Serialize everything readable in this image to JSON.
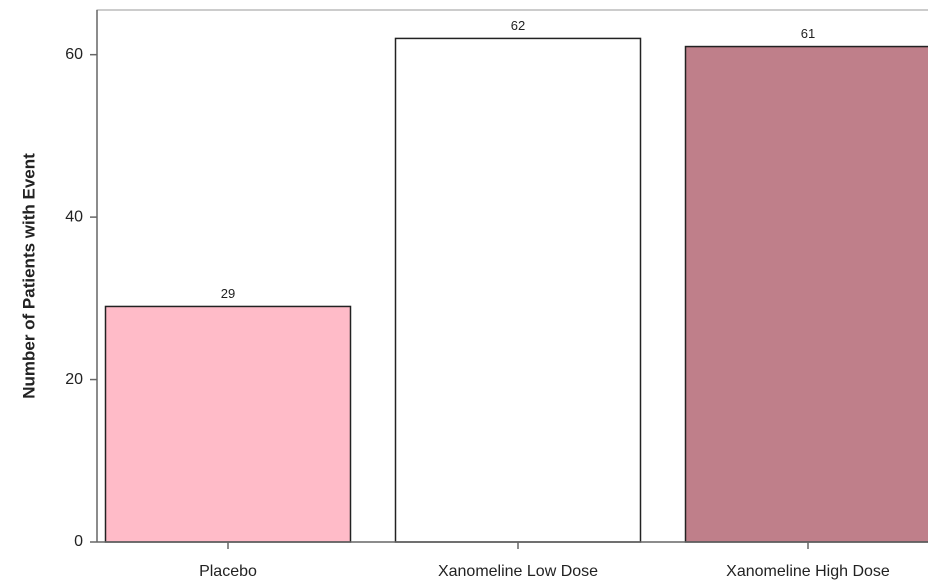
{
  "chart_data": {
    "type": "bar",
    "y_axis_label": "Number of Patients with Event",
    "categories": [
      "Placebo",
      "Xanomeline Low Dose",
      "Xanomeline High Dose"
    ],
    "values": [
      29,
      62,
      61
    ],
    "colors": [
      "#ffbbc8",
      "#ffffff",
      "#bf7f8a"
    ],
    "ylim": [
      0,
      65.5
    ],
    "yticks": [
      0,
      20,
      40,
      60
    ],
    "grid": false
  }
}
